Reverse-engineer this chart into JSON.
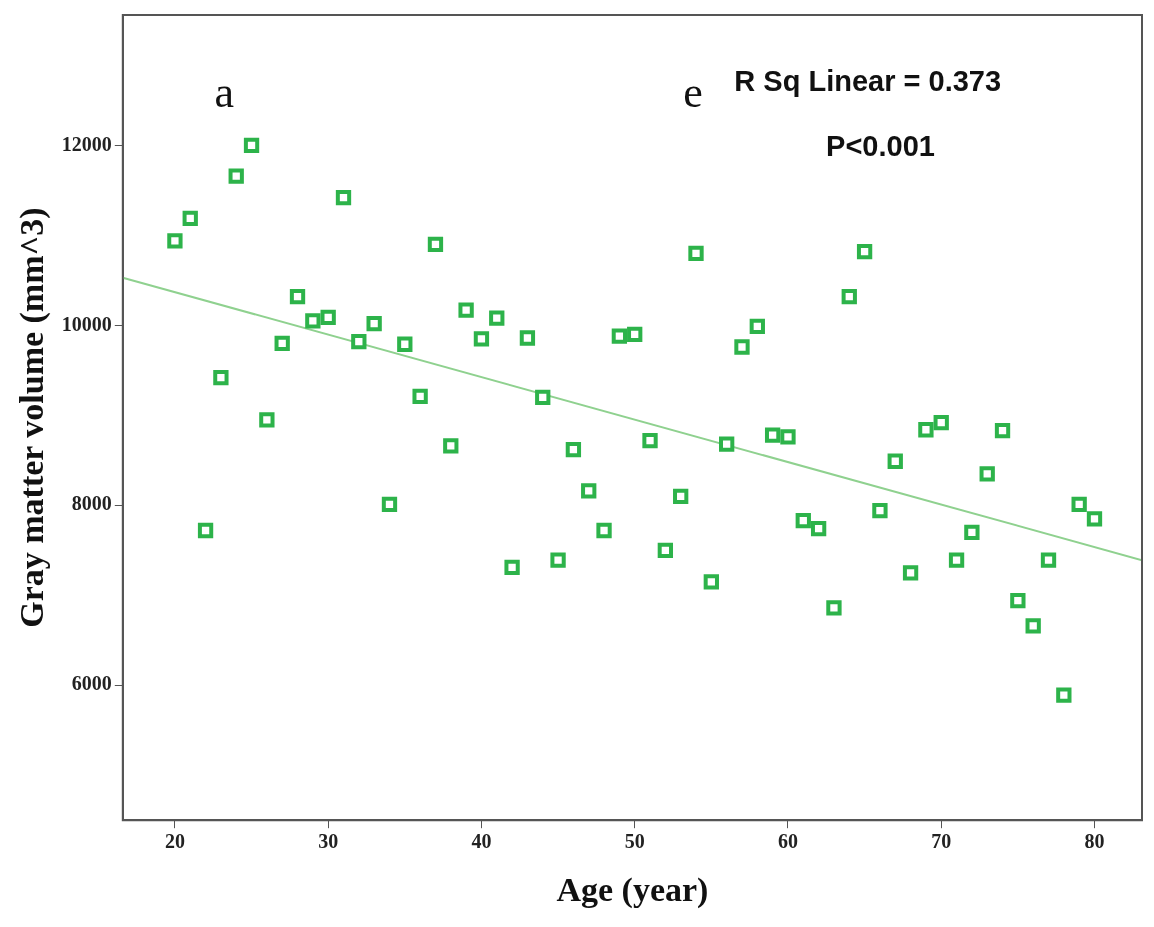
{
  "chart_data": {
    "type": "scatter",
    "xlabel": "Age (year)",
    "ylabel": "Gray matter volume (mm^3)",
    "annotations": [
      "a",
      "e",
      "R Sq Linear = 0.373",
      "P<0.001"
    ],
    "xlim": [
      16.6,
      83.1
    ],
    "ylim": [
      4500,
      13450
    ],
    "xticks": [
      20,
      30,
      40,
      50,
      60,
      70,
      80
    ],
    "yticks": [
      6000,
      8000,
      10000,
      12000
    ],
    "grid": false,
    "legend": false,
    "marker": "square",
    "series": [
      {
        "color": "#2db34a",
        "x": [
          20,
          21,
          22,
          23,
          24,
          25,
          26,
          27,
          28,
          29,
          30,
          31,
          32,
          33,
          34,
          35,
          36,
          37,
          38,
          39,
          40,
          41,
          42,
          43,
          44,
          45,
          46,
          47,
          48,
          49,
          50,
          51,
          52,
          53,
          54,
          55,
          56,
          57,
          58,
          59,
          60,
          61,
          62,
          63,
          64,
          65,
          66,
          67,
          68,
          69,
          70,
          71,
          72,
          73,
          74,
          75,
          76,
          77,
          78,
          79,
          80
        ],
        "values": [
          10940,
          11190,
          7720,
          9420,
          11660,
          12000,
          8950,
          9800,
          10320,
          10050,
          10090,
          11420,
          9820,
          10020,
          8010,
          9790,
          9210,
          10900,
          8660,
          10170,
          9850,
          10080,
          7310,
          9860,
          9200,
          7390,
          8620,
          8160,
          7720,
          9880,
          9900,
          8720,
          7500,
          8100,
          10800,
          7150,
          8680,
          9760,
          9990,
          8780,
          8760,
          7830,
          7740,
          6860,
          10320,
          10820,
          7940,
          8490,
          7250,
          8840,
          8920,
          7390,
          7700,
          8350,
          8830,
          6940,
          6660,
          7390,
          5890,
          8010,
          7850
        ]
      },
      {
        "type": "line",
        "color": "#8fd18f",
        "marker": "none",
        "x": [
          16.6,
          83.1
        ],
        "values": [
          10530,
          7390
        ]
      }
    ]
  }
}
